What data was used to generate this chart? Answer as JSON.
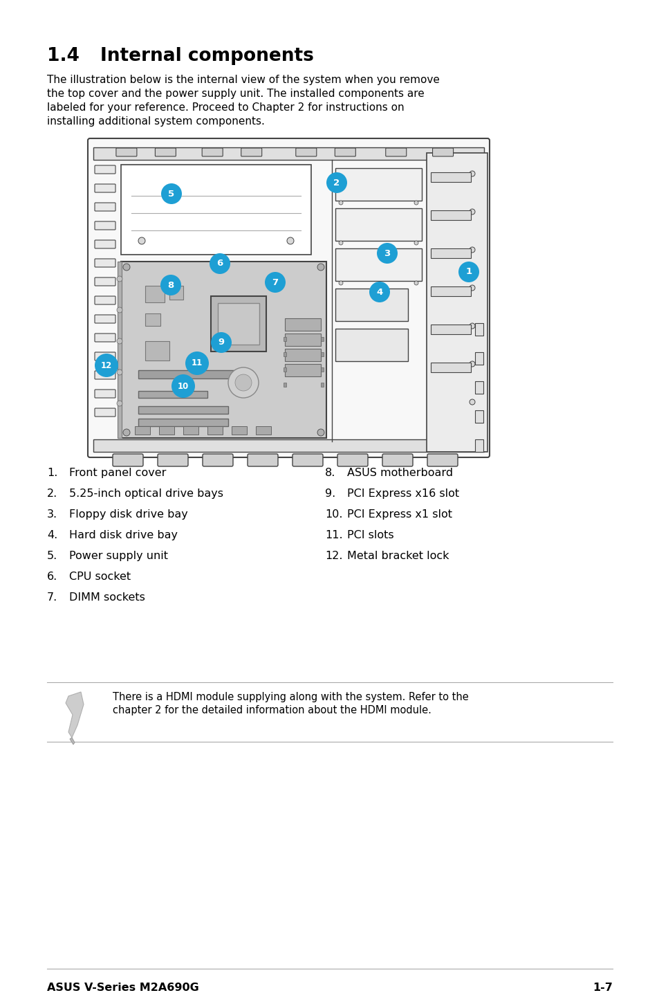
{
  "title_num": "1.4",
  "title_text": "Internal components",
  "body_text_lines": [
    "The illustration below is the internal view of the system when you remove",
    "the top cover and the power supply unit. The installed components are",
    "labeled for your reference. Proceed to Chapter 2 for instructions on",
    "installing additional system components."
  ],
  "list_col1": [
    [
      "1.",
      "Front panel cover"
    ],
    [
      "2.",
      "5.25-inch optical drive bays"
    ],
    [
      "3.",
      "Floppy disk drive bay"
    ],
    [
      "4.",
      "Hard disk drive bay"
    ],
    [
      "5.",
      "Power supply unit"
    ],
    [
      "6.",
      "CPU socket"
    ],
    [
      "7.",
      "DIMM sockets"
    ]
  ],
  "list_col2": [
    [
      "8.",
      "ASUS motherboard"
    ],
    [
      "9.",
      "PCI Express x16 slot"
    ],
    [
      "10.",
      "PCI Express x1 slot"
    ],
    [
      "11.",
      "PCI slots"
    ],
    [
      "12.",
      "Metal bracket lock"
    ]
  ],
  "note_text_lines": [
    "There is a HDMI module supplying along with the system. Refer to the",
    "chapter 2 for the detailed information about the HDMI module."
  ],
  "footer_left": "ASUS V-Series M2A690G",
  "footer_right": "1-7",
  "bg_color": "#ffffff",
  "text_color": "#000000",
  "callout_color": "#1e9fd4",
  "callout_text_color": "#ffffff",
  "line_color": "#aaaaaa",
  "diagram_border": "#444444",
  "case_fill": "#f5f5f5",
  "mb_fill": "#cccccc",
  "dark_fill": "#999999"
}
